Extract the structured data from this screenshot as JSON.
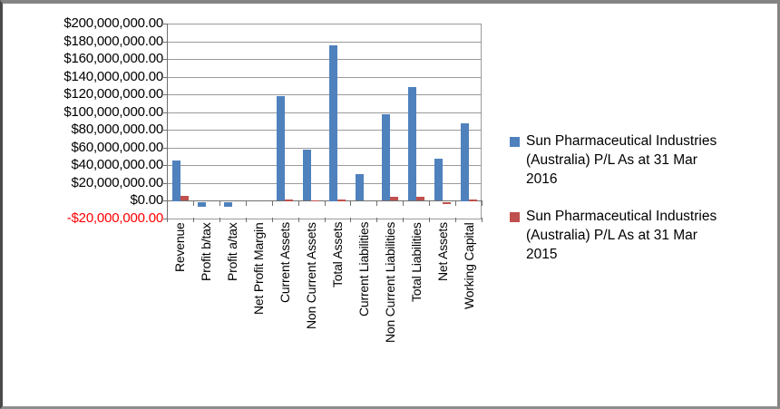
{
  "chart_data": {
    "type": "bar",
    "title": "",
    "xlabel": "",
    "ylabel": "",
    "categories": [
      "Revenue",
      "Profit b/tax",
      "Profit a/tax",
      "Net Profit Margin",
      "Current Assets",
      "Non Current Assets",
      "Total Assets",
      "Current Liabilities",
      "Non Current Liabilities",
      "Total Liabilities",
      "Net Assets",
      "Working Capital"
    ],
    "series": [
      {
        "name": "Sun Pharmaceutical Industries (Australia) P/L As at 31 Mar 2016",
        "color": "#4F81BD",
        "values": [
          46000000,
          -6000000,
          -6000000,
          0,
          118000000,
          58000000,
          176000000,
          30000000,
          98000000,
          128000000,
          48000000,
          88000000
        ]
      },
      {
        "name": "Sun Pharmaceutical Industries (Australia) P/L As at 31 Mar 2015",
        "color": "#C0504D",
        "values": [
          5500000,
          0,
          0,
          0,
          1500000,
          500000,
          2000000,
          0,
          4800000,
          4800000,
          -2800000,
          2000000
        ]
      }
    ],
    "y_axis": {
      "min": -20000000,
      "max": 200000000,
      "step": 20000000,
      "tick_labels": [
        "$200,000,000.00",
        "$180,000,000.00",
        "$160,000,000.00",
        "$140,000,000.00",
        "$120,000,000.00",
        "$100,000,000.00",
        "$80,000,000.00",
        "$60,000,000.00",
        "$40,000,000.00",
        "$20,000,000.00",
        "$0.00",
        "-$20,000,000.00"
      ],
      "negative_label_color": "#FF0000",
      "label_color": "#000000"
    },
    "grid": true,
    "legend_position": "right",
    "gridline_color": "#9a9a9a",
    "axis_color": "#6f6f6f"
  }
}
